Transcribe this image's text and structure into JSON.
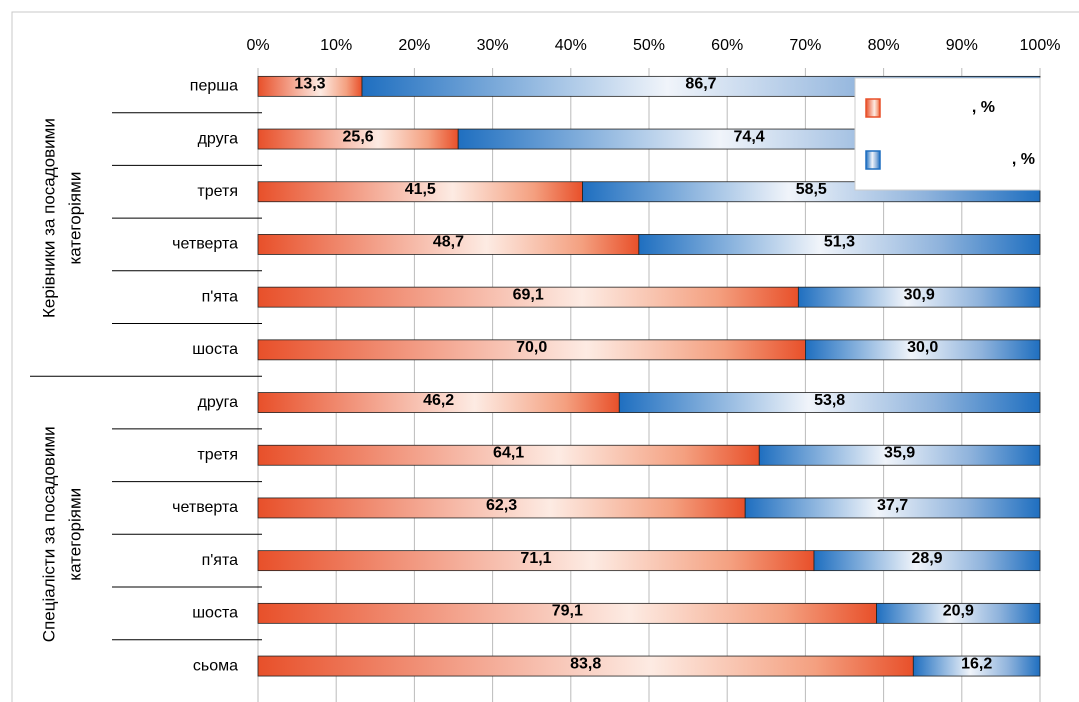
{
  "chart_data": {
    "type": "stacked_bar_horizontal",
    "group_labels": [
      [
        "Керівники за посадовими",
        "категоріями"
      ],
      [
        "Спеціалісти за посадовими",
        "категоріями"
      ]
    ],
    "categories": [
      "перша",
      "друга",
      "третя",
      "четверта",
      "п'ята",
      "шоста",
      "друга",
      "третя",
      "четверта",
      "п'ята",
      "шоста",
      "сьома"
    ],
    "series": [
      {
        "name": ", %",
        "color": "#e8502a",
        "values": [
          13.3,
          25.6,
          41.5,
          48.7,
          69.1,
          70.0,
          46.2,
          64.1,
          62.3,
          71.1,
          79.1,
          83.8
        ],
        "value_labels": [
          "13,3",
          "25,6",
          "41,5",
          "48,7",
          "69,1",
          "70,0",
          "46,2",
          "64,1",
          "62,3",
          "71,1",
          "79,1",
          "83,8"
        ]
      },
      {
        "name": ", %",
        "color": "#1f6fc0",
        "values": [
          86.7,
          74.4,
          58.5,
          51.3,
          30.9,
          30.0,
          53.8,
          35.9,
          37.7,
          28.9,
          20.9,
          16.2
        ],
        "value_labels": [
          "86,7",
          "74,4",
          "58,5",
          "51,3",
          "30,9",
          "30,0",
          "53,8",
          "35,9",
          "37,7",
          "28,9",
          "20,9",
          "16,2"
        ]
      }
    ],
    "xlim": [
      0,
      100
    ],
    "xticks": [
      {
        "value": 0,
        "label": "0%"
      },
      {
        "value": 10,
        "label": "10%"
      },
      {
        "value": 20,
        "label": "20%"
      },
      {
        "value": 30,
        "label": "30%"
      },
      {
        "value": 40,
        "label": "40%"
      },
      {
        "value": 50,
        "label": "50%"
      },
      {
        "value": 60,
        "label": "60%"
      },
      {
        "value": 70,
        "label": "70%"
      },
      {
        "value": 80,
        "label": "80%"
      },
      {
        "value": 90,
        "label": "90%"
      },
      {
        "value": 100,
        "label": "100%"
      }
    ],
    "grid": true,
    "legend": "upper right"
  }
}
